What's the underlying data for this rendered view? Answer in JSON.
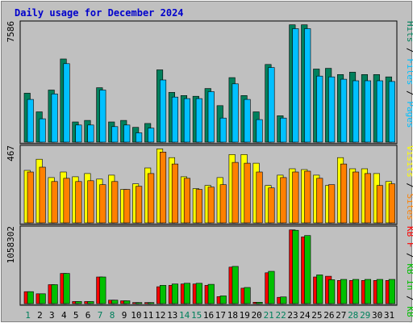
{
  "chart_data": {
    "type": "bar",
    "title": "Daily usage for December 2024",
    "categories": [
      "1",
      "2",
      "3",
      "4",
      "5",
      "6",
      "7",
      "8",
      "9",
      "10",
      "11",
      "12",
      "13",
      "14",
      "15",
      "16",
      "17",
      "18",
      "19",
      "20",
      "21",
      "22",
      "23",
      "24",
      "25",
      "26",
      "27",
      "28",
      "29",
      "30",
      "31"
    ],
    "weekend_days": [
      "1",
      "7",
      "8",
      "14",
      "15",
      "21",
      "22",
      "28",
      "29"
    ],
    "colors": {
      "background": "#c0c0c0",
      "panel_border": "#808080",
      "hits": "#00805c",
      "files": "#00c0ff",
      "visits": "#ffff00",
      "sites": "#ff8000",
      "kb_in": "#00c000",
      "kb_out": "#ff0000",
      "weekday_label": "#000000",
      "weekend_label": "#00805c"
    },
    "panels": [
      {
        "ymax_label": "7586",
        "ylim": [
          0,
          7586
        ],
        "legend": [
          {
            "text": "Hits",
            "color": "#00805c"
          },
          {
            "text": " / ",
            "color": "#000000"
          },
          {
            "text": "Files",
            "color": "#00c0ff"
          },
          {
            "text": " / ",
            "color": "#000000"
          },
          {
            "text": "Pages",
            "color": "#00c0ff"
          }
        ],
        "series": [
          {
            "name": "Hits",
            "color": "#00805c",
            "values": [
              3150,
              1950,
              3350,
              5350,
              1300,
              1400,
              3500,
              1300,
              1400,
              950,
              1200,
              4650,
              3200,
              3000,
              2950,
              3450,
              2350,
              4150,
              3000,
              1950,
              5000,
              1700,
              7550,
              7550,
              4700,
              4750,
              4350,
              4500,
              4350,
              4350,
              4200
            ]
          },
          {
            "name": "Files",
            "color": "#00c0ff",
            "values": [
              2750,
              1500,
              3100,
              5050,
              1100,
              1100,
              3350,
              1000,
              1100,
              600,
              900,
              4000,
              2900,
              2800,
              2800,
              3250,
              1550,
              3750,
              2750,
              1450,
              4800,
              1550,
              7300,
              7300,
              4250,
              4200,
              4050,
              3950,
              3950,
              3950,
              3900
            ]
          }
        ]
      },
      {
        "ymax_label": "467",
        "ylim": [
          0,
          467
        ],
        "legend": [
          {
            "text": "Visits",
            "color": "#ffff00"
          },
          {
            "text": " / ",
            "color": "#000000"
          },
          {
            "text": "Sites",
            "color": "#ff8000"
          }
        ],
        "series": [
          {
            "name": "Visits",
            "color": "#ffff00",
            "values": [
              330,
              400,
              285,
              320,
              290,
              310,
              275,
              300,
              210,
              245,
              345,
              465,
              410,
              290,
              215,
              235,
              285,
              430,
              430,
              375,
              235,
              300,
              340,
              335,
              300,
              235,
              410,
              340,
              340,
              310,
              260
            ]
          },
          {
            "name": "Sites",
            "color": "#ff8000",
            "values": [
              320,
              350,
              260,
              280,
              260,
              265,
              240,
              260,
              210,
              230,
              310,
              445,
              370,
              280,
              210,
              225,
              240,
              380,
              375,
              320,
              220,
              285,
              320,
              325,
              280,
              240,
              370,
              320,
              310,
              235,
              245
            ]
          }
        ]
      },
      {
        "ymax_label": "1058302",
        "ylim": [
          0,
          1058302
        ],
        "legend": [
          {
            "text": "KB F",
            "color": "#ff0000"
          },
          {
            "text": " / ",
            "color": "#000000"
          },
          {
            "text": "KB In",
            "color": "#00c000"
          },
          {
            "text": " / ",
            "color": "#000000"
          },
          {
            "text": "KB Out",
            "color": "#00c000"
          }
        ],
        "series": [
          {
            "name": "KB F",
            "color": "#ff0000",
            "values": [
              170000,
              140000,
              270000,
              430000,
              30000,
              30000,
              380000,
              50000,
              40000,
              15000,
              15000,
              240000,
              260000,
              280000,
              280000,
              260000,
              100000,
              520000,
              220000,
              20000,
              440000,
              90000,
              1050000,
              950000,
              380000,
              390000,
              330000,
              330000,
              330000,
              330000,
              330000
            ]
          },
          {
            "name": "KB In",
            "color": "#00c000",
            "values": [
              170000,
              140000,
              270000,
              430000,
              30000,
              30000,
              380000,
              50000,
              40000,
              15000,
              15000,
              260000,
              280000,
              290000,
              290000,
              275000,
              110000,
              530000,
              230000,
              20000,
              460000,
              95000,
              1045000,
              970000,
              410000,
              340000,
              345000,
              345000,
              345000,
              345000,
              345000
            ]
          }
        ]
      }
    ]
  }
}
